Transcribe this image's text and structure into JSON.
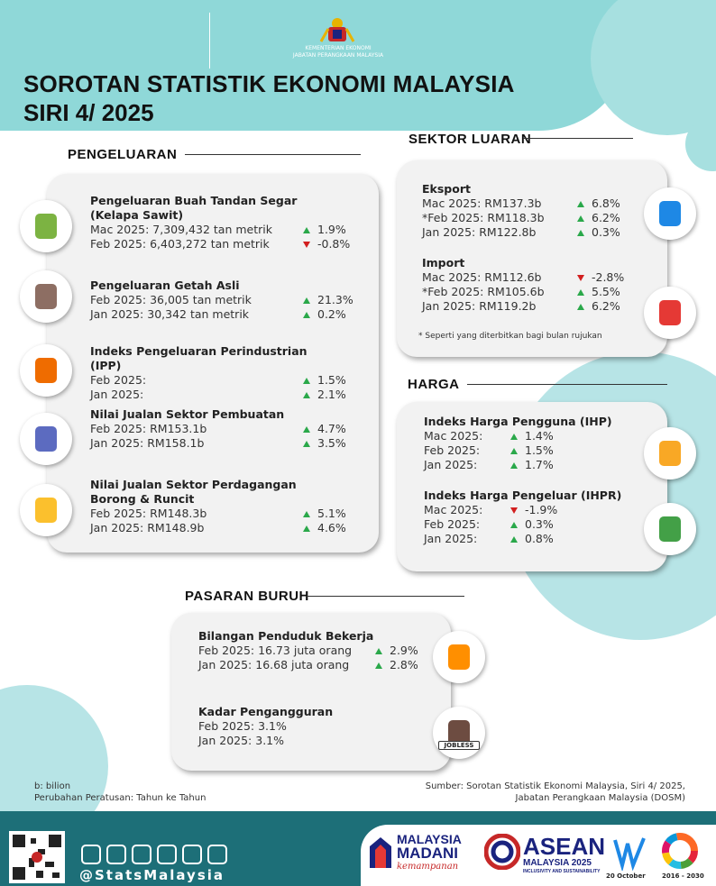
{
  "header": {
    "ministry": "KEMENTERIAN EKONOMI",
    "department": "JABATAN PERANGKAAN MALAYSIA",
    "title": "SOROTAN STATISTIK EKONOMI MALAYSIA",
    "series": "SIRI 4/ 2025"
  },
  "pengeluaran": {
    "heading": "PENGELUARAN",
    "items": [
      {
        "title": "Pengeluaran Buah Tandan Segar (Kelapa Sawit)",
        "rows": [
          {
            "label": "Mac 2025: 7,309,432 tan metrik",
            "change": "1.9%",
            "dir": "up"
          },
          {
            "label": "Feb 2025: 6,403,272 tan metrik",
            "change": "-0.8%",
            "dir": "down"
          }
        ]
      },
      {
        "title": "Pengeluaran Getah Asli",
        "rows": [
          {
            "label": "Feb 2025: 36,005 tan metrik",
            "change": "21.3%",
            "dir": "up"
          },
          {
            "label": "Jan 2025: 30,342 tan metrik",
            "change": "0.2%",
            "dir": "up"
          }
        ]
      },
      {
        "title": "Indeks Pengeluaran Perindustrian (IPP)",
        "rows": [
          {
            "label": "Feb 2025:",
            "change": "1.5%",
            "dir": "up"
          },
          {
            "label": "Jan 2025:",
            "change": "2.1%",
            "dir": "up"
          }
        ]
      },
      {
        "title": "Nilai Jualan Sektor Pembuatan",
        "rows": [
          {
            "label": "Feb 2025: RM153.1b",
            "change": "4.7%",
            "dir": "up"
          },
          {
            "label": "Jan 2025: RM158.1b",
            "change": "3.5%",
            "dir": "up"
          }
        ]
      },
      {
        "title": "Nilai Jualan Sektor Perdagangan Borong & Runcit",
        "rows": [
          {
            "label": "Feb 2025: RM148.3b",
            "change": "5.1%",
            "dir": "up"
          },
          {
            "label": "Jan 2025: RM148.9b",
            "change": "4.6%",
            "dir": "up"
          }
        ]
      }
    ]
  },
  "sektor_luaran": {
    "heading": "SEKTOR LUARAN",
    "items": [
      {
        "title": "Eksport",
        "rows": [
          {
            "label": "Mac 2025: RM137.3b",
            "change": "6.8%",
            "dir": "up"
          },
          {
            "label": "*Feb 2025: RM118.3b",
            "change": "6.2%",
            "dir": "up"
          },
          {
            "label": "Jan 2025: RM122.8b",
            "change": "0.3%",
            "dir": "up"
          }
        ]
      },
      {
        "title": "Import",
        "rows": [
          {
            "label": "Mac 2025: RM112.6b",
            "change": "-2.8%",
            "dir": "down"
          },
          {
            "label": "*Feb 2025: RM105.6b",
            "change": "5.5%",
            "dir": "up"
          },
          {
            "label": "Jan 2025: RM119.2b",
            "change": "6.2%",
            "dir": "up"
          }
        ]
      }
    ],
    "note": "* Seperti yang diterbitkan bagi bulan rujukan"
  },
  "harga": {
    "heading": "HARGA",
    "items": [
      {
        "title": "Indeks Harga Pengguna (IHP)",
        "rows": [
          {
            "label": "Mac 2025:",
            "change": "1.4%",
            "dir": "up"
          },
          {
            "label": "Feb 2025:",
            "change": "1.5%",
            "dir": "up"
          },
          {
            "label": "Jan 2025:",
            "change": "1.7%",
            "dir": "up"
          }
        ]
      },
      {
        "title": "Indeks Harga Pengeluar (IHPR)",
        "rows": [
          {
            "label": "Mac 2025:",
            "change": "-1.9%",
            "dir": "down"
          },
          {
            "label": "Feb 2025:",
            "change": "0.3%",
            "dir": "up"
          },
          {
            "label": "Jan 2025:",
            "change": "0.8%",
            "dir": "up"
          }
        ]
      }
    ]
  },
  "pasaran_buruh": {
    "heading": "PASARAN BURUH",
    "items": [
      {
        "title": "Bilangan Penduduk Bekerja",
        "rows": [
          {
            "label": "Feb 2025: 16.73 juta orang",
            "change": "2.9%",
            "dir": "up"
          },
          {
            "label": "Jan 2025: 16.68 juta orang",
            "change": "2.8%",
            "dir": "up"
          }
        ]
      },
      {
        "title": "Kadar Pengangguran",
        "rows": [
          {
            "label": "Feb 2025: 3.1%"
          },
          {
            "label": "Jan 2025: 3.1%"
          }
        ]
      }
    ],
    "icon_label": "JOBLESS"
  },
  "footer": {
    "notes": [
      "b: bilion",
      "Perubahan Peratusan: Tahun ke Tahun"
    ],
    "source": [
      "Sumber: Sorotan Statistik Ekonomi Malaysia, Siri 4/ 2025,",
      "Jabatan Perangkaan Malaysia (DOSM)"
    ],
    "social": "@StatsMalaysia",
    "logos": {
      "madani": [
        "MALAYSIA",
        "MADANI",
        "kemampanan"
      ],
      "asean": [
        "ASEAN",
        "MALAYSIA 2025",
        "INCLUSIVITY AND SUSTAINABILITY"
      ],
      "date": "20 October",
      "sdg": "2016 - 2030"
    }
  }
}
